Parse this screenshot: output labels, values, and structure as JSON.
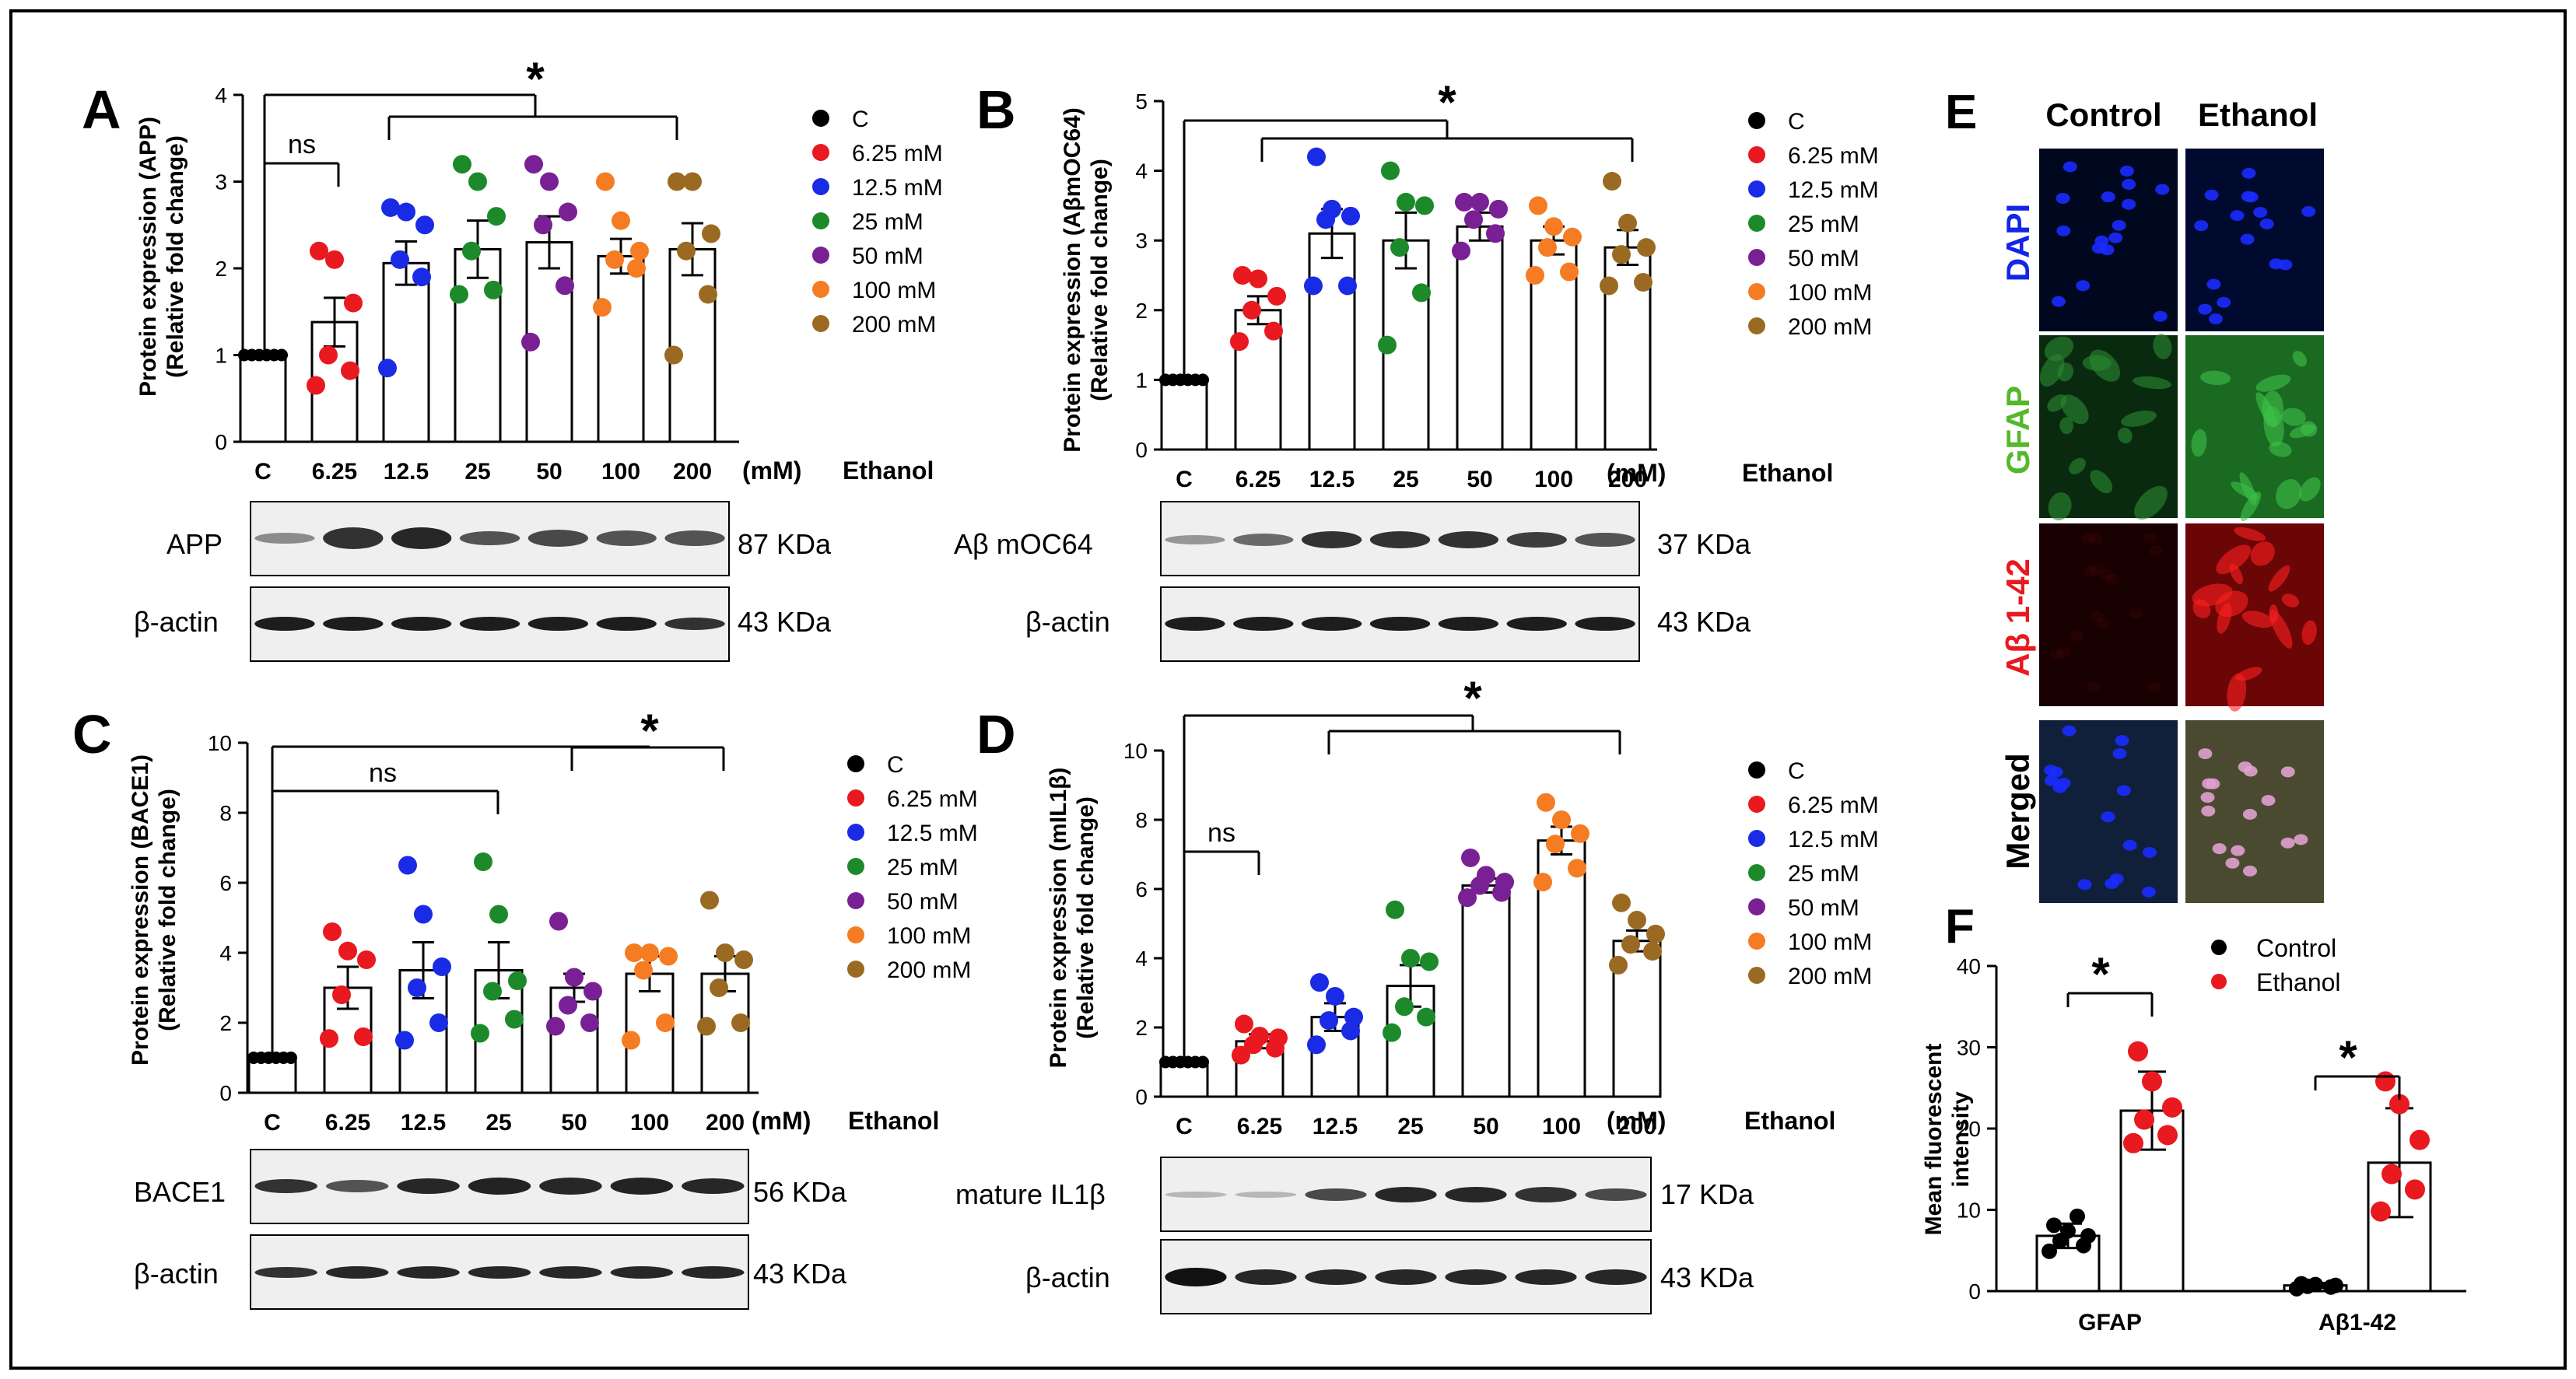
{
  "colors": {
    "C": "#000000",
    "6.25": "#e8191f",
    "12.5": "#1a2be6",
    "25": "#1c8a2a",
    "50": "#7a2095",
    "100": "#f57c22",
    "200": "#9b6a22",
    "control": "#000000",
    "ethanol": "#e8191f"
  },
  "panels": {
    "A": {
      "letter": "A",
      "ylabel_line1": "Protein expression (APP)",
      "ylabel_line2": "(Relative fold change)",
      "unit": "(mM)",
      "treatment": "Ethanol",
      "ns": "ns",
      "star": "*",
      "blot1": {
        "label": "APP",
        "mw": "87 KDa"
      },
      "blot2": {
        "label": "β-actin",
        "mw": "43 KDa"
      }
    },
    "B": {
      "letter": "B",
      "ylabel_line1": "Protein expression (AβmOC64)",
      "ylabel_line2": "(Relative fold change)",
      "unit": "(mM)",
      "treatment": "Ethanol",
      "star": "*",
      "blot1": {
        "label": "Aβ mOC64",
        "mw": "37 KDa"
      },
      "blot2": {
        "label": "β-actin",
        "mw": "43 KDa"
      }
    },
    "C": {
      "letter": "C",
      "ylabel_line1": "Protein expression (BACE1)",
      "ylabel_line2": "(Relative fold change)",
      "unit": "(mM)",
      "treatment": "Ethanol",
      "ns": "ns",
      "star": "*",
      "blot1": {
        "label": "BACE1",
        "mw": "56 KDa"
      },
      "blot2": {
        "label": "β-actin",
        "mw": "43 KDa"
      }
    },
    "D": {
      "letter": "D",
      "ylabel_line1": "Protein expression (mIL1β)",
      "ylabel_line2": "(Relative fold change)",
      "unit": "(mM)",
      "treatment": "Ethanol",
      "ns": "ns",
      "star": "*",
      "blot1": {
        "label": "mature IL1β",
        "mw": "17 KDa"
      },
      "blot2": {
        "label": "β-actin",
        "mw": "43 KDa"
      }
    },
    "E": {
      "letter": "E",
      "col1": "Control",
      "col2": "Ethanol",
      "rows": [
        "DAPI",
        "GFAP",
        "Aβ 1-42",
        "Merged"
      ]
    },
    "F": {
      "letter": "F",
      "ylabel_line1": "Mean fluorescent",
      "ylabel_line2": "intensity",
      "legend_control": "Control",
      "legend_ethanol": "Ethanol",
      "star": "*"
    }
  },
  "chart_data": [
    {
      "id": "A",
      "type": "bar",
      "title": "",
      "ylabel": "Protein expression (APP) (Relative fold change)",
      "xlabel": "Ethanol (mM)",
      "categories": [
        "C",
        "6.25",
        "12.5",
        "25",
        "50",
        "100",
        "200"
      ],
      "legend": [
        "C",
        "6.25 mM",
        "12.5 mM",
        "25 mM",
        "50 mM",
        "100 mM",
        "200 mM"
      ],
      "ylim": [
        0,
        4
      ],
      "yticks": [
        0,
        1,
        2,
        3,
        4
      ],
      "means": [
        1.0,
        1.38,
        2.06,
        2.22,
        2.3,
        2.14,
        2.22
      ],
      "sem": [
        0.0,
        0.28,
        0.25,
        0.33,
        0.3,
        0.2,
        0.3
      ],
      "points": [
        [
          1,
          1,
          1,
          1,
          1,
          1
        ],
        [
          0.65,
          0.82,
          1.0,
          1.6,
          2.1,
          2.2
        ],
        [
          0.85,
          1.9,
          2.1,
          2.5,
          2.65,
          2.7
        ],
        [
          1.7,
          1.75,
          2.2,
          2.6,
          3.0,
          3.2
        ],
        [
          1.15,
          1.8,
          2.5,
          2.65,
          3.0,
          3.2
        ],
        [
          1.55,
          2.0,
          2.1,
          2.2,
          2.55,
          3.0
        ],
        [
          1.0,
          1.7,
          2.2,
          2.4,
          3.0,
          3.0
        ]
      ],
      "annotations": [
        {
          "text": "ns",
          "from": "C",
          "to": "6.25"
        },
        {
          "text": "*",
          "from": "C",
          "to": "200"
        }
      ]
    },
    {
      "id": "B",
      "type": "bar",
      "ylabel": "Protein expression (AβmOC64) (Relative fold change)",
      "xlabel": "Ethanol (mM)",
      "categories": [
        "C",
        "6.25",
        "12.5",
        "25",
        "50",
        "100",
        "200"
      ],
      "legend": [
        "C",
        "6.25 mM",
        "12.5 mM",
        "25 mM",
        "50 mM",
        "100 mM",
        "200 mM"
      ],
      "ylim": [
        0,
        5
      ],
      "yticks": [
        0,
        1,
        2,
        3,
        4,
        5
      ],
      "means": [
        1.0,
        2.0,
        3.1,
        3.0,
        3.2,
        3.0,
        2.9
      ],
      "sem": [
        0.0,
        0.2,
        0.35,
        0.4,
        0.2,
        0.2,
        0.25
      ],
      "points": [
        [
          1,
          1,
          1,
          1,
          1,
          1
        ],
        [
          1.55,
          1.7,
          2.0,
          2.2,
          2.45,
          2.5
        ],
        [
          2.35,
          2.35,
          3.3,
          3.35,
          3.45,
          4.2
        ],
        [
          1.5,
          2.25,
          2.9,
          3.5,
          3.55,
          4.0
        ],
        [
          2.85,
          3.1,
          3.3,
          3.45,
          3.55,
          3.55
        ],
        [
          2.5,
          2.55,
          2.9,
          3.05,
          3.2,
          3.5
        ],
        [
          2.35,
          2.4,
          2.8,
          2.9,
          3.25,
          3.85
        ]
      ],
      "annotations": [
        {
          "text": "*",
          "from": "C",
          "to": "200"
        }
      ]
    },
    {
      "id": "C",
      "type": "bar",
      "ylabel": "Protein expression (BACE1) (Relative fold change)",
      "xlabel": "Ethanol (mM)",
      "categories": [
        "C",
        "6.25",
        "12.5",
        "25",
        "50",
        "100",
        "200"
      ],
      "legend": [
        "C",
        "6.25 mM",
        "12.5 mM",
        "25 mM",
        "50 mM",
        "100 mM",
        "200 mM"
      ],
      "ylim": [
        0,
        10
      ],
      "yticks": [
        0,
        2,
        4,
        6,
        8,
        10
      ],
      "means": [
        1.0,
        3.0,
        3.5,
        3.5,
        3.0,
        3.4,
        3.4
      ],
      "sem": [
        0.0,
        0.6,
        0.8,
        0.8,
        0.4,
        0.5,
        0.5
      ],
      "points": [
        [
          1,
          1,
          1,
          1,
          1,
          1
        ],
        [
          1.55,
          1.6,
          2.8,
          3.8,
          4.05,
          4.6
        ],
        [
          1.5,
          2.0,
          3.0,
          3.6,
          5.1,
          6.5
        ],
        [
          1.7,
          2.1,
          2.9,
          3.2,
          5.1,
          6.6
        ],
        [
          1.9,
          2.0,
          2.5,
          2.9,
          3.3,
          4.9
        ],
        [
          1.5,
          2.0,
          3.5,
          3.9,
          4.0,
          4.0
        ],
        [
          1.9,
          2.0,
          3.0,
          3.8,
          4.0,
          5.5
        ]
      ],
      "annotations": [
        {
          "text": "ns",
          "from": "C",
          "to": "25"
        },
        {
          "text": "*",
          "from": "50",
          "to": "200"
        }
      ]
    },
    {
      "id": "D",
      "type": "bar",
      "ylabel": "Protein expression (mIL1β) (Relative fold change)",
      "xlabel": "Ethanol (mM)",
      "categories": [
        "C",
        "6.25",
        "12.5",
        "25",
        "50",
        "100",
        "200"
      ],
      "legend": [
        "C",
        "6.25 mM",
        "12.5 mM",
        "25 mM",
        "50 mM",
        "100 mM",
        "200 mM"
      ],
      "ylim": [
        0,
        10
      ],
      "yticks": [
        0,
        2,
        4,
        6,
        8,
        10
      ],
      "means": [
        1.0,
        1.6,
        2.3,
        3.2,
        6.1,
        7.4,
        4.5
      ],
      "sem": [
        0.0,
        0.2,
        0.4,
        0.6,
        0.2,
        0.4,
        0.3
      ],
      "points": [
        [
          1,
          1,
          1,
          1,
          1,
          1
        ],
        [
          1.2,
          1.4,
          1.5,
          1.7,
          1.75,
          2.1
        ],
        [
          1.5,
          1.9,
          2.2,
          2.3,
          2.9,
          3.3
        ],
        [
          1.85,
          2.3,
          2.6,
          3.9,
          4.0,
          5.4
        ],
        [
          5.75,
          5.9,
          6.1,
          6.2,
          6.4,
          6.9
        ],
        [
          6.2,
          6.6,
          7.3,
          7.6,
          8.0,
          8.5
        ],
        [
          3.8,
          4.2,
          4.4,
          4.7,
          5.1,
          5.6
        ]
      ],
      "annotations": [
        {
          "text": "ns",
          "from": "C",
          "to": "6.25"
        },
        {
          "text": "*",
          "from": "C",
          "to": "200"
        }
      ]
    },
    {
      "id": "F",
      "type": "bar",
      "ylabel": "Mean fluorescent intensity",
      "categories": [
        "GFAP",
        "Aβ1-42"
      ],
      "ylim": [
        0,
        40
      ],
      "yticks": [
        0,
        10,
        20,
        30,
        40
      ],
      "series": [
        {
          "name": "Control",
          "values": [
            6.8,
            0.7
          ],
          "sd": [
            1.5,
            0.3
          ],
          "points": [
            [
              4.9,
              5.6,
              6.2,
              6.8,
              7.4,
              8.1,
              9.2
            ],
            [
              0.3,
              0.5,
              0.6,
              0.7,
              0.8,
              0.9
            ]
          ]
        },
        {
          "name": "Ethanol",
          "values": [
            22.2,
            15.8
          ],
          "sd": [
            4.8,
            6.7
          ],
          "points": [
            [
              18.2,
              19.2,
              21.1,
              22.6,
              25.8,
              29.5
            ],
            [
              9.8,
              12.5,
              14.4,
              18.6,
              23.0,
              25.8
            ]
          ]
        }
      ],
      "annotations": [
        {
          "text": "*",
          "group": "GFAP"
        },
        {
          "text": "*",
          "group": "Aβ1-42"
        }
      ]
    }
  ]
}
